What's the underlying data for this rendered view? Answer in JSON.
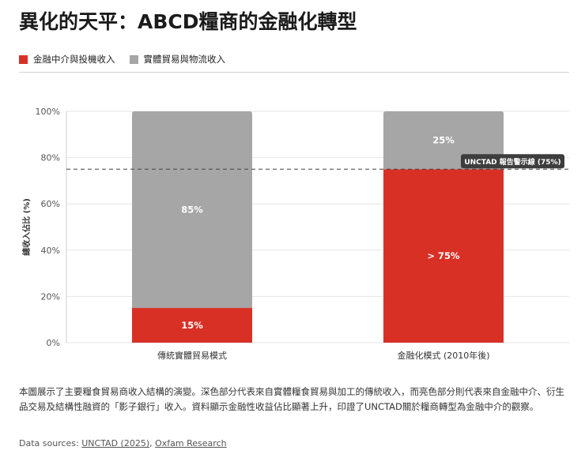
{
  "title": "異化的天平：ABCD糧商的金融化轉型",
  "legend": [
    {
      "label": "金融中介與投機收入",
      "color": "#d93026"
    },
    {
      "label": "實體貿易與物流收入",
      "color": "#a6a6a6"
    }
  ],
  "chart_data": {
    "type": "bar",
    "stacked": true,
    "categories": [
      "傳統實體貿易模式",
      "金融化模式 (2010年後)"
    ],
    "series": [
      {
        "name": "金融中介與投機收入",
        "color": "#d93026",
        "values": [
          15,
          75
        ],
        "labels": [
          "15%",
          "> 75%"
        ]
      },
      {
        "name": "實體貿易與物流收入",
        "color": "#a6a6a6",
        "values": [
          85,
          25
        ],
        "labels": [
          "85%",
          "25%"
        ]
      }
    ],
    "ylabel": "總收入佔比 (%)",
    "ylim": [
      0,
      100
    ],
    "yticks": [
      0,
      20,
      40,
      60,
      80,
      100
    ],
    "ytick_labels": [
      "0%",
      "20%",
      "40%",
      "60%",
      "80%",
      "100%"
    ],
    "grid": true,
    "reference_line": {
      "value": 75,
      "label": "UNCTAD 報告警示線 (75%)"
    }
  },
  "caption": "本圖展示了主要糧食貿易商收入結構的演變。深色部分代表來自實體糧食貿易與加工的傳統收入，而亮色部分則代表來自金融中介、衍生品交易及結構性融資的「影子銀行」收入。資料顯示金融性收益佔比顯著上升，印證了UNCTAD關於糧商轉型為金融中介的觀察。",
  "sources": {
    "prefix": "Data sources: ",
    "links": [
      "UNCTAD (2025)",
      "Oxfam Research"
    ],
    "separator": ", "
  }
}
